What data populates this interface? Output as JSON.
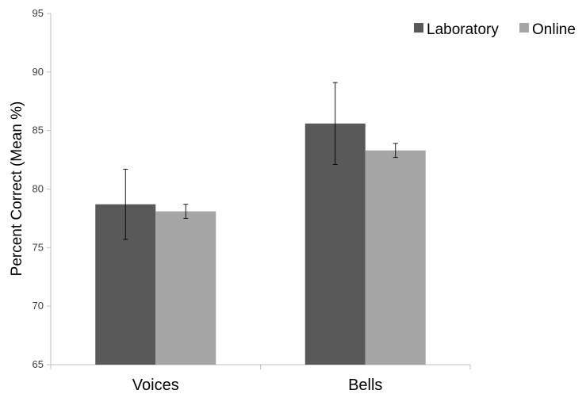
{
  "chart_data": {
    "type": "bar",
    "categories": [
      "Voices",
      "Bells"
    ],
    "series": [
      {
        "name": "Laboratory",
        "values": [
          78.7,
          85.6
        ],
        "error": [
          3.0,
          3.5
        ],
        "color": "#595959"
      },
      {
        "name": "Online",
        "values": [
          78.1,
          83.3
        ],
        "error": [
          0.6,
          0.6
        ],
        "color": "#a6a6a6"
      }
    ],
    "ylabel": "Percent Correct (Mean %)",
    "ylim": [
      65,
      95
    ],
    "yticks": [
      "65",
      "70",
      "75",
      "80",
      "85",
      "90",
      "95"
    ],
    "legend": "top-right",
    "grid": false
  }
}
